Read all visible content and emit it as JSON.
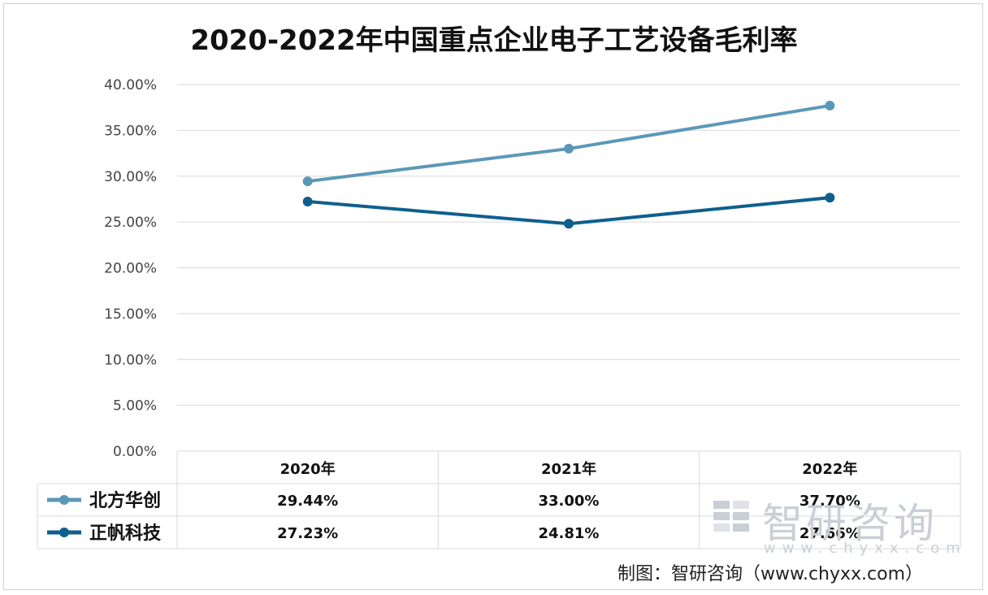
{
  "chart_data": {
    "type": "line",
    "title": "2020-2022年中国重点企业电子工艺设备毛利率",
    "categories": [
      "2020年",
      "2021年",
      "2022年"
    ],
    "yticks": [
      "0.00%",
      "5.00%",
      "10.00%",
      "15.00%",
      "20.00%",
      "25.00%",
      "30.00%",
      "35.00%",
      "40.00%"
    ],
    "ylim": [
      0,
      40
    ],
    "grid": true,
    "series": [
      {
        "name": "北方华创",
        "values": [
          29.44,
          33.0,
          37.7
        ],
        "labels": [
          "29.44%",
          "33.00%",
          "37.70%"
        ],
        "color": "#5b98b8"
      },
      {
        "name": "正帆科技",
        "values": [
          27.23,
          24.81,
          27.66
        ],
        "labels": [
          "27.23%",
          "24.81%",
          "27.66%"
        ],
        "color": "#0f5f8c"
      }
    ]
  },
  "watermark": {
    "brand": "智研咨询",
    "url": "www.chyxx.com"
  },
  "source": "制图：智研咨询（www.chyxx.com）"
}
